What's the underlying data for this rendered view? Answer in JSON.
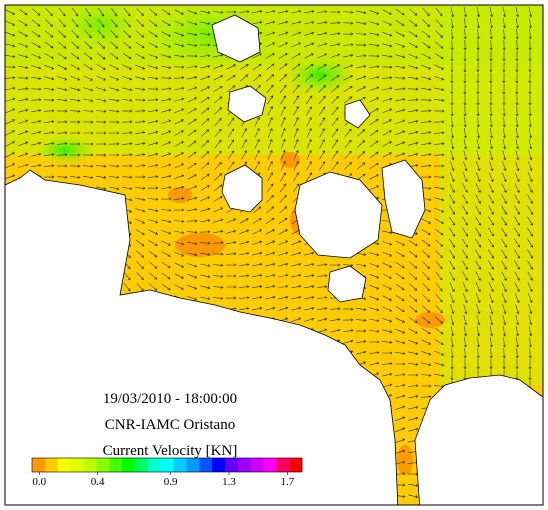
{
  "map": {
    "timestamp": "19/03/2010  -  18:00:00",
    "institution": "CNR-IAMC  Oristano",
    "legend": {
      "title": "Current Velocity [KN]",
      "lim": [
        -0.05,
        1.8
      ],
      "ticks": [
        {
          "value": 0,
          "label": "0.0"
        },
        {
          "value": 0.4,
          "label": "0.4"
        },
        {
          "value": 0.9,
          "label": "0.9"
        },
        {
          "value": 1.3,
          "label": "1.3"
        },
        {
          "value": 1.7,
          "label": "1.7"
        }
      ],
      "colors": [
        "#ff9900",
        "#ffcc00",
        "#ffff00",
        "#ddff00",
        "#bbff00",
        "#88ff00",
        "#44ff00",
        "#00ff00",
        "#00ff66",
        "#00ffcc",
        "#00ffff",
        "#00ccff",
        "#0099ff",
        "#0055ff",
        "#0000ff",
        "#6600ff",
        "#9900ff",
        "#cc00ff",
        "#ff00ff",
        "#ff0066",
        "#ff0000"
      ]
    }
  }
}
